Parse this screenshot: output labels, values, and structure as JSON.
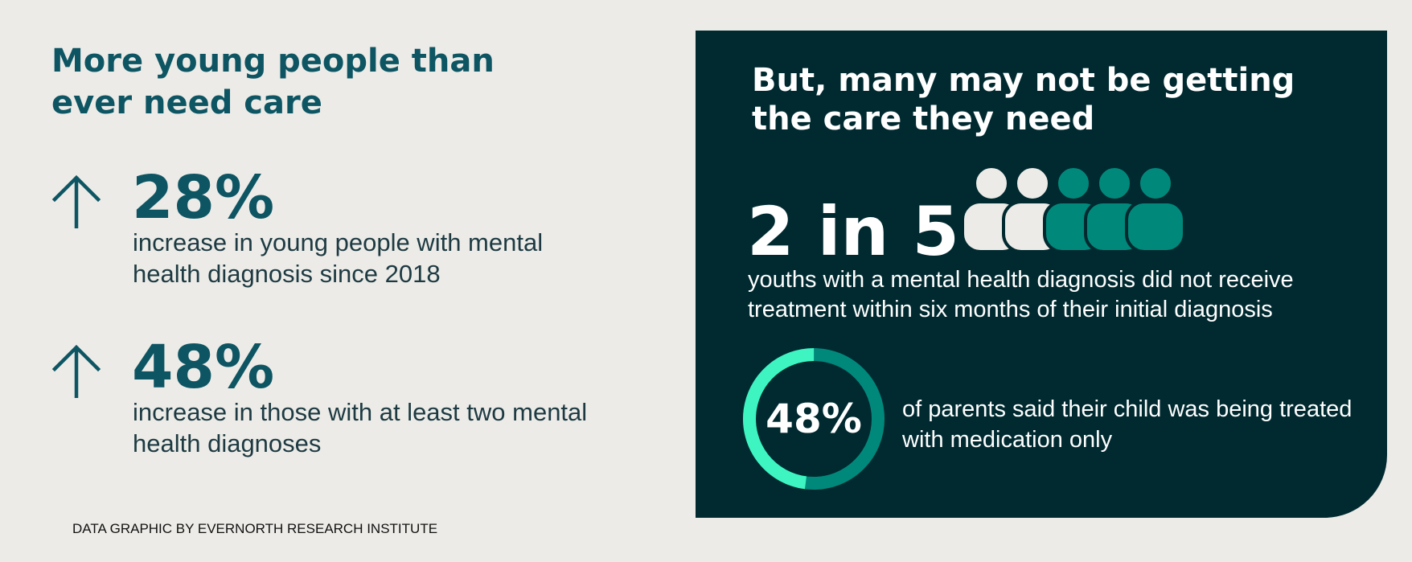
{
  "left": {
    "title": "More young people than ever need care",
    "stats": [
      {
        "value": "28%",
        "description": "increase in young people with mental health diagnosis since 2018"
      },
      {
        "value": "48%",
        "description": "increase in those with at least two mental health diagnoses"
      }
    ]
  },
  "right": {
    "title": "But, many may not be getting the care they need",
    "ratio_text": "2 in 5",
    "ratio_description": "youths with a mental health diagnosis did not receive treatment within six months of their initial diagnosis",
    "people_total": 5,
    "people_highlighted": 2,
    "donut": {
      "percent": 48,
      "label": "48%",
      "description": "of parents said their child was being treated with medication only"
    }
  },
  "credit": "DATA GRAPHIC BY EVERNORTH RESEARCH INSTITUTE",
  "colors": {
    "background": "#ecebe7",
    "heading_teal": "#0d5563",
    "panel": "#002a30",
    "person_light": "#ecebe7",
    "person_teal": "#00897b",
    "donut_bright": "#3ef5c1",
    "donut_dark": "#00897b"
  }
}
